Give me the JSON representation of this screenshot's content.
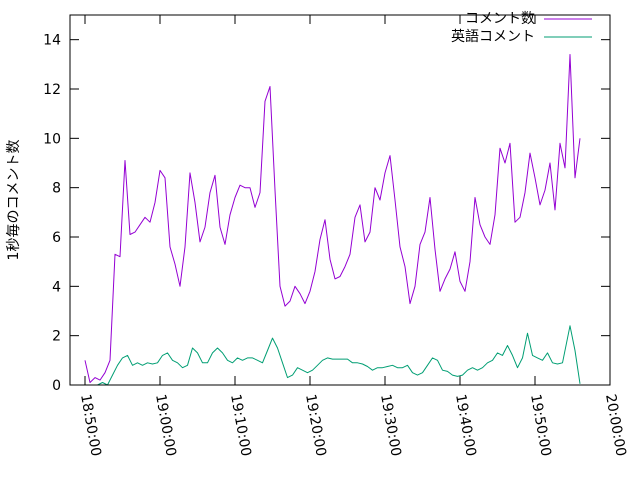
{
  "chart_data": {
    "type": "line",
    "title": "",
    "xlabel": "",
    "ylabel": "1秒毎のコメント数",
    "xlim": [
      "18:48:00",
      "20:00:00"
    ],
    "ylim": [
      0,
      15
    ],
    "x_ticks": [
      "18:50:00",
      "19:00:00",
      "19:10:00",
      "19:20:00",
      "19:30:00",
      "19:40:00",
      "19:50:00",
      "20:00:00"
    ],
    "y_ticks": [
      0,
      2,
      4,
      6,
      8,
      10,
      12,
      14
    ],
    "legend_position": "top-right",
    "grid": false,
    "series": [
      {
        "name": "コメント数",
        "color": "#9400d3",
        "points": [
          [
            "18:50:00",
            1.0
          ],
          [
            "18:50:40",
            0.1
          ],
          [
            "18:51:20",
            0.3
          ],
          [
            "18:52:00",
            0.2
          ],
          [
            "18:52:40",
            0.5
          ],
          [
            "18:53:20",
            1.0
          ],
          [
            "18:54:00",
            5.3
          ],
          [
            "18:54:40",
            5.2
          ],
          [
            "18:55:20",
            9.1
          ],
          [
            "18:56:00",
            6.1
          ],
          [
            "18:56:40",
            6.2
          ],
          [
            "18:57:20",
            6.5
          ],
          [
            "18:58:00",
            6.8
          ],
          [
            "18:58:40",
            6.6
          ],
          [
            "18:59:20",
            7.4
          ],
          [
            "19:00:00",
            8.7
          ],
          [
            "19:00:40",
            8.4
          ],
          [
            "19:01:20",
            5.6
          ],
          [
            "19:02:00",
            4.9
          ],
          [
            "19:02:40",
            4.0
          ],
          [
            "19:03:20",
            5.6
          ],
          [
            "19:04:00",
            8.6
          ],
          [
            "19:04:40",
            7.4
          ],
          [
            "19:05:20",
            5.8
          ],
          [
            "19:06:00",
            6.4
          ],
          [
            "19:06:40",
            7.8
          ],
          [
            "19:07:20",
            8.5
          ],
          [
            "19:08:00",
            6.4
          ],
          [
            "19:08:40",
            5.7
          ],
          [
            "19:09:20",
            6.9
          ],
          [
            "19:10:00",
            7.6
          ],
          [
            "19:10:40",
            8.1
          ],
          [
            "19:11:20",
            8.0
          ],
          [
            "19:12:00",
            8.0
          ],
          [
            "19:12:40",
            7.2
          ],
          [
            "19:13:20",
            7.8
          ],
          [
            "19:14:00",
            11.5
          ],
          [
            "19:14:40",
            12.1
          ],
          [
            "19:15:20",
            7.9
          ],
          [
            "19:16:00",
            4.0
          ],
          [
            "19:16:40",
            3.2
          ],
          [
            "19:17:20",
            3.4
          ],
          [
            "19:18:00",
            4.0
          ],
          [
            "19:18:40",
            3.7
          ],
          [
            "19:19:20",
            3.3
          ],
          [
            "19:20:00",
            3.8
          ],
          [
            "19:20:40",
            4.6
          ],
          [
            "19:21:20",
            5.9
          ],
          [
            "19:22:00",
            6.7
          ],
          [
            "19:22:40",
            5.1
          ],
          [
            "19:23:20",
            4.3
          ],
          [
            "19:24:00",
            4.4
          ],
          [
            "19:24:40",
            4.8
          ],
          [
            "19:25:20",
            5.3
          ],
          [
            "19:26:00",
            6.8
          ],
          [
            "19:26:40",
            7.3
          ],
          [
            "19:27:20",
            5.8
          ],
          [
            "19:28:00",
            6.2
          ],
          [
            "19:28:40",
            8.0
          ],
          [
            "19:29:20",
            7.5
          ],
          [
            "19:30:00",
            8.6
          ],
          [
            "19:30:40",
            9.3
          ],
          [
            "19:31:20",
            7.5
          ],
          [
            "19:32:00",
            5.6
          ],
          [
            "19:32:40",
            4.8
          ],
          [
            "19:33:20",
            3.3
          ],
          [
            "19:34:00",
            4.0
          ],
          [
            "19:34:40",
            5.7
          ],
          [
            "19:35:20",
            6.2
          ],
          [
            "19:36:00",
            7.6
          ],
          [
            "19:36:40",
            5.5
          ],
          [
            "19:37:20",
            3.8
          ],
          [
            "19:38:00",
            4.3
          ],
          [
            "19:38:40",
            4.7
          ],
          [
            "19:39:20",
            5.4
          ],
          [
            "19:40:00",
            4.2
          ],
          [
            "19:40:40",
            3.8
          ],
          [
            "19:41:20",
            5.0
          ],
          [
            "19:42:00",
            7.6
          ],
          [
            "19:42:40",
            6.5
          ],
          [
            "19:43:20",
            6.0
          ],
          [
            "19:44:00",
            5.7
          ],
          [
            "19:44:40",
            6.9
          ],
          [
            "19:45:20",
            9.6
          ],
          [
            "19:46:00",
            9.0
          ],
          [
            "19:46:40",
            9.8
          ],
          [
            "19:47:20",
            6.6
          ],
          [
            "19:48:00",
            6.8
          ],
          [
            "19:48:40",
            7.8
          ],
          [
            "19:49:20",
            9.4
          ],
          [
            "19:50:00",
            8.4
          ],
          [
            "19:50:40",
            7.3
          ],
          [
            "19:51:20",
            7.9
          ],
          [
            "19:52:00",
            9.0
          ],
          [
            "19:52:40",
            7.1
          ],
          [
            "19:53:20",
            9.8
          ],
          [
            "19:54:00",
            8.8
          ],
          [
            "19:54:40",
            13.4
          ],
          [
            "19:55:20",
            8.4
          ],
          [
            "19:56:00",
            10.0
          ]
        ]
      },
      {
        "name": "英語コメント",
        "color": "#009e73",
        "points": [
          [
            "18:51:00",
            0.0
          ],
          [
            "18:51:40",
            0.0
          ],
          [
            "18:52:20",
            0.1
          ],
          [
            "18:53:00",
            0.0
          ],
          [
            "18:53:40",
            0.4
          ],
          [
            "18:54:20",
            0.8
          ],
          [
            "18:55:00",
            1.1
          ],
          [
            "18:55:40",
            1.2
          ],
          [
            "18:56:20",
            0.8
          ],
          [
            "18:57:00",
            0.9
          ],
          [
            "18:57:40",
            0.8
          ],
          [
            "18:58:20",
            0.9
          ],
          [
            "18:59:00",
            0.85
          ],
          [
            "18:59:40",
            0.9
          ],
          [
            "19:00:20",
            1.2
          ],
          [
            "19:01:00",
            1.3
          ],
          [
            "19:01:40",
            1.0
          ],
          [
            "19:02:20",
            0.9
          ],
          [
            "19:03:00",
            0.7
          ],
          [
            "19:03:40",
            0.8
          ],
          [
            "19:04:20",
            1.5
          ],
          [
            "19:05:00",
            1.3
          ],
          [
            "19:05:40",
            0.9
          ],
          [
            "19:06:20",
            0.9
          ],
          [
            "19:07:00",
            1.3
          ],
          [
            "19:07:40",
            1.5
          ],
          [
            "19:08:20",
            1.3
          ],
          [
            "19:09:00",
            1.0
          ],
          [
            "19:09:40",
            0.9
          ],
          [
            "19:10:20",
            1.1
          ],
          [
            "19:11:00",
            1.0
          ],
          [
            "19:11:40",
            1.1
          ],
          [
            "19:12:20",
            1.1
          ],
          [
            "19:13:00",
            1.0
          ],
          [
            "19:13:40",
            0.9
          ],
          [
            "19:14:20",
            1.4
          ],
          [
            "19:15:00",
            1.9
          ],
          [
            "19:15:40",
            1.5
          ],
          [
            "19:16:20",
            0.9
          ],
          [
            "19:17:00",
            0.3
          ],
          [
            "19:17:40",
            0.4
          ],
          [
            "19:18:20",
            0.7
          ],
          [
            "19:19:00",
            0.6
          ],
          [
            "19:19:40",
            0.5
          ],
          [
            "19:20:20",
            0.6
          ],
          [
            "19:21:00",
            0.8
          ],
          [
            "19:21:40",
            1.0
          ],
          [
            "19:22:20",
            1.1
          ],
          [
            "19:23:00",
            1.05
          ],
          [
            "19:23:40",
            1.05
          ],
          [
            "19:24:20",
            1.05
          ],
          [
            "19:25:00",
            1.05
          ],
          [
            "19:25:40",
            0.9
          ],
          [
            "19:26:20",
            0.9
          ],
          [
            "19:27:00",
            0.85
          ],
          [
            "19:27:40",
            0.75
          ],
          [
            "19:28:20",
            0.6
          ],
          [
            "19:29:00",
            0.7
          ],
          [
            "19:29:40",
            0.7
          ],
          [
            "19:30:20",
            0.75
          ],
          [
            "19:31:00",
            0.8
          ],
          [
            "19:31:40",
            0.7
          ],
          [
            "19:32:20",
            0.7
          ],
          [
            "19:33:00",
            0.8
          ],
          [
            "19:33:40",
            0.5
          ],
          [
            "19:34:20",
            0.4
          ],
          [
            "19:35:00",
            0.5
          ],
          [
            "19:35:40",
            0.8
          ],
          [
            "19:36:20",
            1.1
          ],
          [
            "19:37:00",
            1.0
          ],
          [
            "19:37:40",
            0.6
          ],
          [
            "19:38:20",
            0.55
          ],
          [
            "19:39:00",
            0.4
          ],
          [
            "19:39:40",
            0.35
          ],
          [
            "19:40:20",
            0.4
          ],
          [
            "19:41:00",
            0.6
          ],
          [
            "19:41:40",
            0.7
          ],
          [
            "19:42:20",
            0.6
          ],
          [
            "19:43:00",
            0.7
          ],
          [
            "19:43:40",
            0.9
          ],
          [
            "19:44:20",
            1.0
          ],
          [
            "19:45:00",
            1.3
          ],
          [
            "19:45:40",
            1.2
          ],
          [
            "19:46:20",
            1.6
          ],
          [
            "19:47:00",
            1.2
          ],
          [
            "19:47:40",
            0.7
          ],
          [
            "19:48:20",
            1.1
          ],
          [
            "19:49:00",
            2.1
          ],
          [
            "19:49:40",
            1.2
          ],
          [
            "19:50:20",
            1.1
          ],
          [
            "19:51:00",
            1.0
          ],
          [
            "19:51:40",
            1.3
          ],
          [
            "19:52:20",
            0.9
          ],
          [
            "19:53:00",
            0.85
          ],
          [
            "19:53:40",
            0.9
          ],
          [
            "19:54:40",
            2.4
          ],
          [
            "19:55:20",
            1.4
          ],
          [
            "19:56:00",
            0.05
          ]
        ]
      }
    ]
  }
}
